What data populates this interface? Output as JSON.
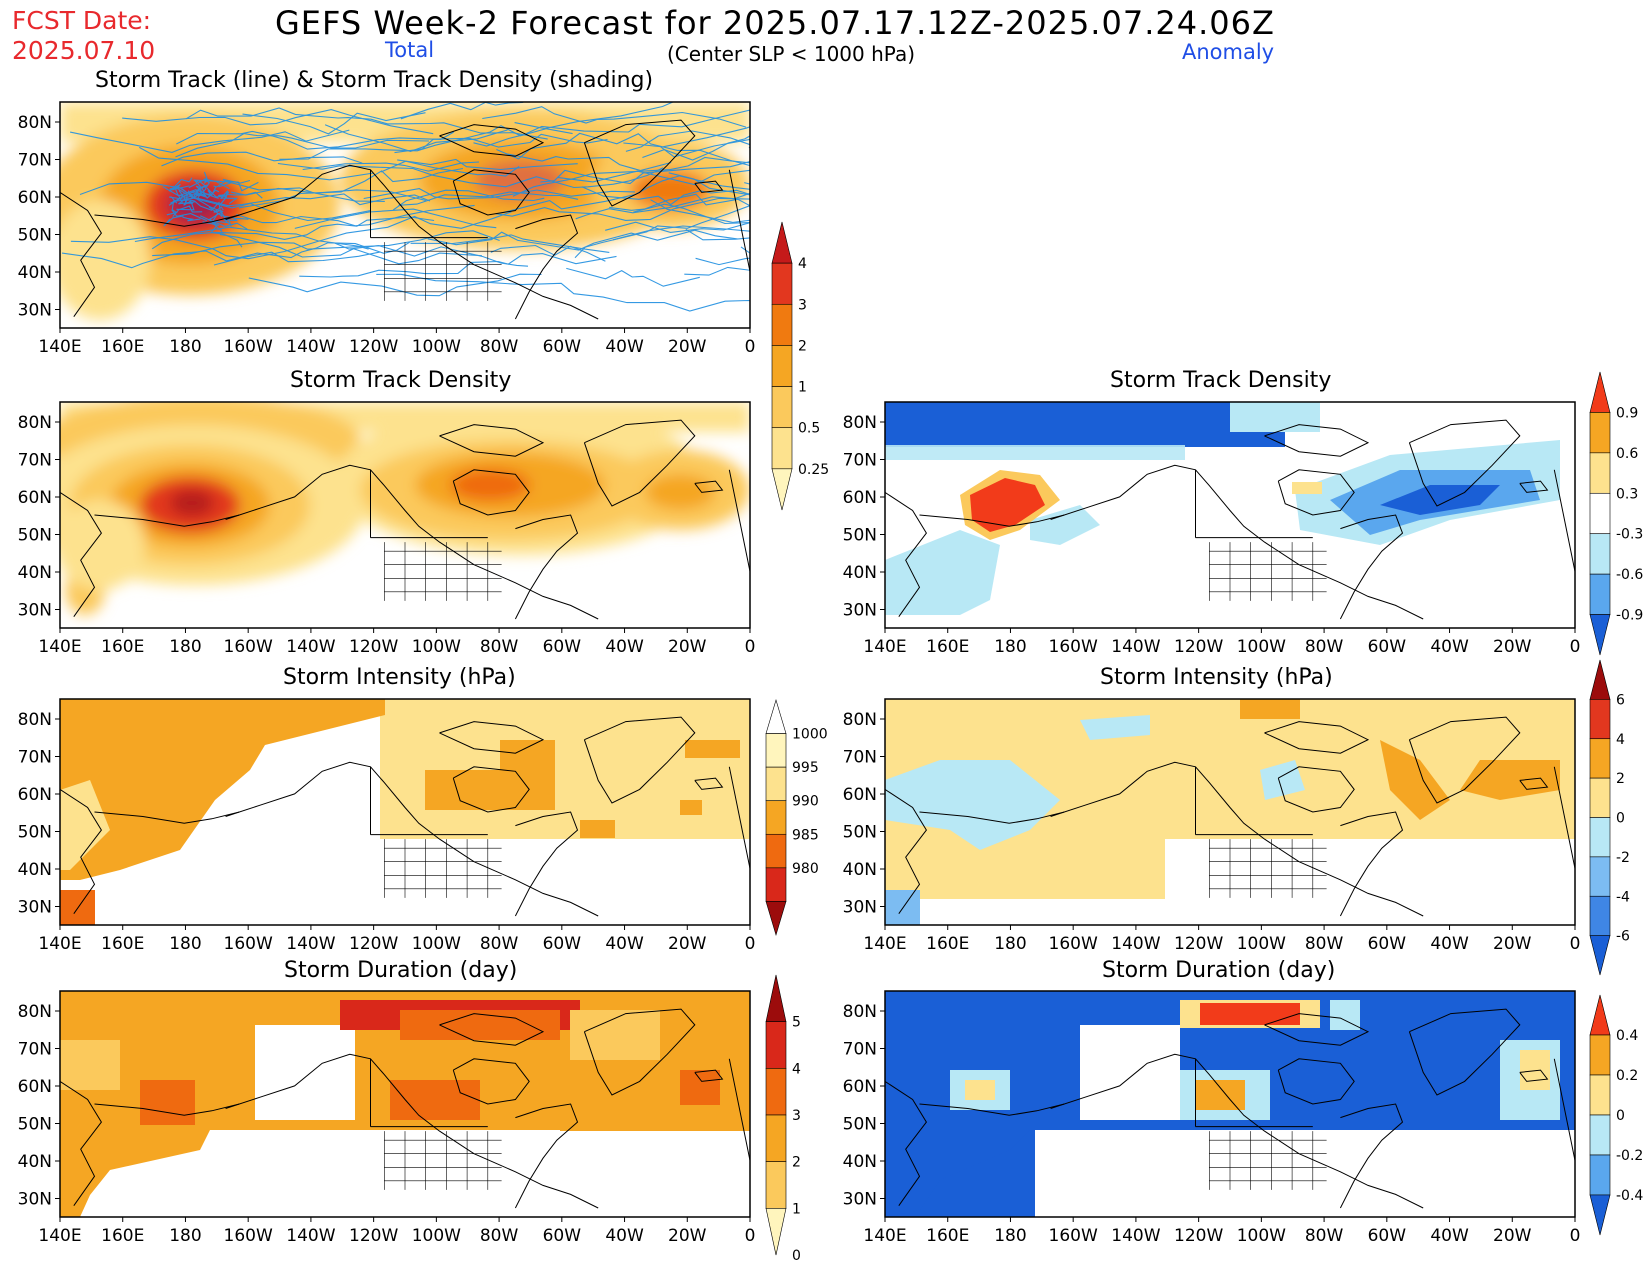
{
  "header": {
    "fcst_label": "FCST Date:",
    "fcst_date": "2025.07.10",
    "title": "GEFS Week-2 Forecast for 2025.07.17.12Z-2025.07.24.06Z",
    "total_label": "Total",
    "subtitle": "(Center SLP < 1000 hPa)",
    "anomaly_label": "Anomaly"
  },
  "axes": {
    "lon_labels": [
      "140E",
      "160E",
      "180",
      "160W",
      "140W",
      "120W",
      "100W",
      "80W",
      "60W",
      "40W",
      "20W",
      "0"
    ],
    "lat_labels": [
      "80N",
      "70N",
      "60N",
      "50N",
      "40N",
      "30N"
    ]
  },
  "panels": {
    "track": {
      "title": "Storm Track (line) & Storm Track Density (shading)"
    },
    "density": {
      "title": "Storm Track Density"
    },
    "density_anom": {
      "title": "Storm Track Density"
    },
    "intensity": {
      "title": "Storm Intensity (hPa)"
    },
    "intensity_anom": {
      "title": "Storm Intensity (hPa)"
    },
    "duration": {
      "title": "Storm Duration (day)"
    },
    "duration_anom": {
      "title": "Storm Duration (day)"
    }
  },
  "colorbars": {
    "density_total": {
      "labels": [
        "4",
        "3",
        "2",
        "1",
        "0.5",
        "0.25"
      ],
      "colors": [
        "#c51a1a",
        "#e2371f",
        "#f07a10",
        "#f5a623",
        "#fbc95c",
        "#fde28e",
        "#fff5bd"
      ]
    },
    "density_anom": {
      "labels": [
        "0.9",
        "0.6",
        "0.3",
        "-0.3",
        "-0.6",
        "-0.9"
      ],
      "colors": [
        "#f23b1a",
        "#f5a623",
        "#fde28e",
        "#ffffff",
        "#b8e8f5",
        "#5aa7ee",
        "#1a5fd6"
      ]
    },
    "intensity_total": {
      "labels": [
        "1000",
        "995",
        "990",
        "985",
        "980"
      ],
      "colors": [
        "#ffffff",
        "#fff5bd",
        "#fde28e",
        "#f5a623",
        "#ef6a10",
        "#d9281a",
        "#9c0c0c"
      ]
    },
    "intensity_anom": {
      "labels": [
        "6",
        "4",
        "2",
        "0",
        "-2",
        "-4",
        "-6"
      ],
      "colors": [
        "#9c0c0c",
        "#e2371f",
        "#f5a623",
        "#fde28e",
        "#b8e8f5",
        "#7cbcf2",
        "#3f86e5",
        "#1a5fd6"
      ]
    },
    "duration_total": {
      "labels": [
        "5",
        "4",
        "3",
        "2",
        "1",
        "0"
      ],
      "colors": [
        "#9c0c0c",
        "#d9281a",
        "#ef6a10",
        "#f5a623",
        "#fbc95c",
        "#fff5bd"
      ]
    },
    "duration_anom": {
      "labels": [
        "0.4",
        "0.2",
        "0",
        "-0.2",
        "-0.4"
      ],
      "colors": [
        "#f23b1a",
        "#f5a623",
        "#fde28e",
        "#b8e8f5",
        "#5aa7ee",
        "#1a5fd6"
      ]
    }
  }
}
